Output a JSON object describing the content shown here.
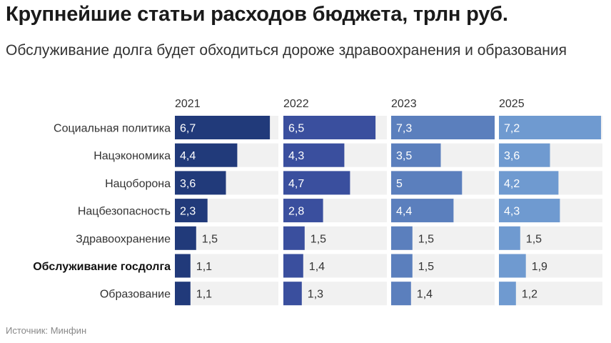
{
  "title": "Крупнейшие статьи расходов бюджета, трлн руб.",
  "subtitle": "Обслуживание долга будет обходиться дороже здравоохранения и образования",
  "source": "Источник: Минфин",
  "colors": {
    "2021": "#213a7a",
    "2022": "#3a4f9e",
    "2023": "#5b7fbd",
    "2025": "#6f9ad0",
    "track": "#f1f1f1"
  },
  "chart_data": {
    "type": "bar",
    "orientation": "horizontal",
    "layout": "small-multiples",
    "categories": [
      "Социальная политика",
      "Нацэкономика",
      "Нацоборона",
      "Нацбезопасность",
      "Здравоохранение",
      "Обслуживание госдолга",
      "Образование"
    ],
    "highlighted_category": "Обслуживание госдолга",
    "xlim": [
      0,
      7.3
    ],
    "series": [
      {
        "name": "2021",
        "values": [
          6.7,
          4.4,
          3.6,
          2.3,
          1.5,
          1.1,
          1.1
        ],
        "labels": [
          "6,7",
          "4,4",
          "3,6",
          "2,3",
          "1,5",
          "1,1",
          "1,1"
        ]
      },
      {
        "name": "2022",
        "values": [
          6.5,
          4.3,
          4.7,
          2.8,
          1.5,
          1.4,
          1.3
        ],
        "labels": [
          "6,5",
          "4,3",
          "4,7",
          "2,8",
          "1,5",
          "1,4",
          "1,3"
        ]
      },
      {
        "name": "2023",
        "values": [
          7.3,
          3.5,
          5,
          4.4,
          1.5,
          1.5,
          1.4
        ],
        "labels": [
          "7,3",
          "3,5",
          "5",
          "4,4",
          "1,5",
          "1,5",
          "1,4"
        ]
      },
      {
        "name": "2025",
        "values": [
          7.2,
          3.6,
          4.2,
          4.3,
          1.5,
          1.9,
          1.2
        ],
        "labels": [
          "7,2",
          "3,6",
          "4,2",
          "4,3",
          "1,5",
          "1,9",
          "1,2"
        ]
      }
    ]
  }
}
